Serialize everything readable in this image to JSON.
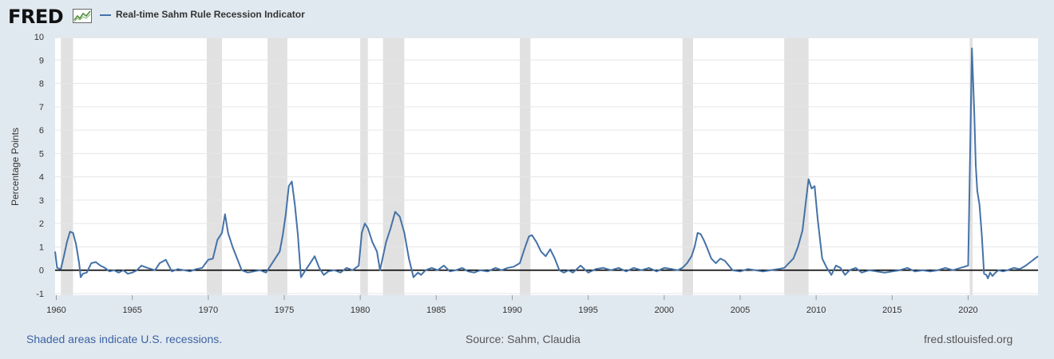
{
  "header": {
    "logo_text": "FRED",
    "logo_icon": "chart-line-icon",
    "series_title": "Real-time Sahm Rule Recession Indicator"
  },
  "footer": {
    "recession_note": "Shaded areas indicate U.S. recessions.",
    "source": "Source: Sahm, Claudia",
    "site": "fred.stlouisfed.org"
  },
  "colors": {
    "background": "#e1e9f0",
    "plot_background": "#ffffff",
    "series_line": "#4572a7",
    "recession_shade": "#e1e1e1",
    "zero_line": "#000000",
    "grid": "#e6e6e6",
    "link": "#3b63a3"
  },
  "chart_data": {
    "type": "line",
    "title": "Real-time Sahm Rule Recession Indicator",
    "xlabel": "",
    "ylabel": "Percentage Points",
    "xlim": [
      1959.92,
      2024.6
    ],
    "ylim": [
      -1,
      10
    ],
    "xticks": [
      1960,
      1965,
      1970,
      1975,
      1980,
      1985,
      1990,
      1995,
      2000,
      2005,
      2010,
      2015,
      2020
    ],
    "yticks": [
      -1,
      0,
      1,
      2,
      3,
      4,
      5,
      6,
      7,
      8,
      9,
      10
    ],
    "grid": true,
    "zero_line": true,
    "legend": "top-left",
    "recessions": [
      [
        1960.3,
        1961.1
      ],
      [
        1969.9,
        1970.9
      ],
      [
        1973.9,
        1975.2
      ],
      [
        1980.0,
        1980.5
      ],
      [
        1981.5,
        1982.9
      ],
      [
        1990.5,
        1991.2
      ],
      [
        2001.2,
        2001.9
      ],
      [
        2007.9,
        2009.5
      ],
      [
        2020.1,
        2020.3
      ]
    ],
    "series": [
      {
        "name": "Real-time Sahm Rule Recession Indicator",
        "x": [
          1959.92,
          1960.05,
          1960.3,
          1960.5,
          1960.7,
          1960.9,
          1961.1,
          1961.3,
          1961.5,
          1961.6,
          1961.75,
          1962.0,
          1962.3,
          1962.6,
          1962.9,
          1963.2,
          1963.5,
          1963.8,
          1964.1,
          1964.4,
          1964.7,
          1965.0,
          1965.3,
          1965.6,
          1966.0,
          1966.5,
          1966.8,
          1967.2,
          1967.6,
          1968.0,
          1968.4,
          1968.8,
          1969.2,
          1969.6,
          1970.0,
          1970.3,
          1970.6,
          1970.9,
          1971.1,
          1971.3,
          1971.6,
          1971.9,
          1972.2,
          1972.6,
          1973.0,
          1973.4,
          1973.8,
          1974.1,
          1974.4,
          1974.7,
          1974.9,
          1975.1,
          1975.3,
          1975.5,
          1975.7,
          1975.9,
          1976.1,
          1976.4,
          1976.7,
          1977.0,
          1977.3,
          1977.6,
          1977.9,
          1978.3,
          1978.7,
          1979.1,
          1979.5,
          1979.9,
          1980.1,
          1980.3,
          1980.5,
          1980.8,
          1981.1,
          1981.3,
          1981.5,
          1981.7,
          1982.0,
          1982.3,
          1982.6,
          1982.9,
          1983.2,
          1983.5,
          1983.8,
          1984.0,
          1984.3,
          1984.7,
          1985.1,
          1985.5,
          1985.9,
          1986.3,
          1986.7,
          1987.1,
          1987.5,
          1987.9,
          1988.4,
          1988.9,
          1989.3,
          1989.7,
          1990.1,
          1990.5,
          1990.8,
          1991.1,
          1991.3,
          1991.6,
          1991.9,
          1992.2,
          1992.5,
          1992.8,
          1993.1,
          1993.4,
          1993.7,
          1994.0,
          1994.5,
          1995.0,
          1995.5,
          1996.0,
          1996.5,
          1997.0,
          1997.5,
          1998.0,
          1998.5,
          1999.0,
          1999.5,
          2000.0,
          2000.5,
          2000.9,
          2001.2,
          2001.5,
          2001.8,
          2002.0,
          2002.2,
          2002.4,
          2002.6,
          2002.8,
          2003.1,
          2003.4,
          2003.7,
          2004.0,
          2004.5,
          2005.0,
          2005.5,
          2006.0,
          2006.5,
          2007.0,
          2007.5,
          2007.9,
          2008.2,
          2008.5,
          2008.8,
          2009.1,
          2009.3,
          2009.5,
          2009.7,
          2009.9,
          2010.1,
          2010.4,
          2010.7,
          2011.0,
          2011.3,
          2011.6,
          2011.9,
          2012.2,
          2012.6,
          2013.0,
          2013.5,
          2014.0,
          2014.5,
          2015.0,
          2015.5,
          2016.0,
          2016.5,
          2017.0,
          2017.5,
          2018.0,
          2018.5,
          2019.0,
          2019.5,
          2020.0,
          2020.25,
          2020.4,
          2020.5,
          2020.6,
          2020.75,
          2020.9,
          2021.05,
          2021.2,
          2021.3,
          2021.45,
          2021.6,
          2021.8,
          2022.0,
          2022.3,
          2022.6,
          2023.0,
          2023.4,
          2023.8,
          2024.0,
          2024.2,
          2024.4,
          2024.6
        ],
        "values": [
          0.8,
          0.1,
          0.05,
          0.6,
          1.2,
          1.65,
          1.6,
          1.1,
          0.3,
          -0.3,
          -0.15,
          -0.1,
          0.3,
          0.35,
          0.2,
          0.1,
          -0.05,
          0.0,
          -0.1,
          0.0,
          -0.15,
          -0.1,
          0.0,
          0.2,
          0.1,
          0.0,
          0.3,
          0.45,
          -0.05,
          0.05,
          0.0,
          -0.05,
          0.05,
          0.1,
          0.45,
          0.5,
          1.3,
          1.6,
          2.4,
          1.6,
          1.0,
          0.5,
          0.0,
          -0.1,
          -0.05,
          0.0,
          -0.1,
          0.2,
          0.5,
          0.8,
          1.5,
          2.4,
          3.6,
          3.8,
          2.8,
          1.5,
          -0.3,
          0.0,
          0.3,
          0.6,
          0.1,
          -0.2,
          -0.05,
          0.0,
          -0.1,
          0.1,
          0.0,
          0.2,
          1.6,
          2.0,
          1.8,
          1.2,
          0.8,
          0.0,
          0.6,
          1.2,
          1.8,
          2.5,
          2.3,
          1.6,
          0.5,
          -0.3,
          -0.1,
          -0.2,
          0.0,
          0.1,
          0.0,
          0.2,
          -0.05,
          0.0,
          0.1,
          -0.05,
          -0.1,
          0.0,
          -0.05,
          0.1,
          0.0,
          0.1,
          0.15,
          0.3,
          0.9,
          1.45,
          1.5,
          1.2,
          0.8,
          0.6,
          0.9,
          0.5,
          0.0,
          -0.1,
          0.0,
          -0.1,
          0.2,
          -0.1,
          0.05,
          0.1,
          0.0,
          0.1,
          -0.05,
          0.1,
          0.0,
          0.1,
          -0.05,
          0.1,
          0.05,
          0.0,
          0.1,
          0.3,
          0.6,
          1.0,
          1.6,
          1.55,
          1.3,
          1.0,
          0.5,
          0.3,
          0.5,
          0.4,
          0.0,
          -0.05,
          0.05,
          0.0,
          -0.05,
          0.0,
          0.05,
          0.1,
          0.3,
          0.5,
          1.0,
          1.7,
          2.8,
          3.9,
          3.5,
          3.6,
          2.2,
          0.5,
          0.1,
          -0.2,
          0.2,
          0.1,
          -0.2,
          0.0,
          0.1,
          -0.1,
          0.0,
          -0.05,
          -0.1,
          -0.05,
          0.0,
          0.1,
          -0.05,
          0.0,
          -0.05,
          0.0,
          0.1,
          0.0,
          0.1,
          0.2,
          9.5,
          6.8,
          4.5,
          3.4,
          2.8,
          1.5,
          -0.15,
          -0.2,
          -0.35,
          -0.1,
          -0.25,
          -0.1,
          0.0,
          -0.05,
          0.0,
          0.1,
          0.05,
          0.2,
          0.3,
          0.4,
          0.5,
          0.6
        ]
      }
    ]
  }
}
